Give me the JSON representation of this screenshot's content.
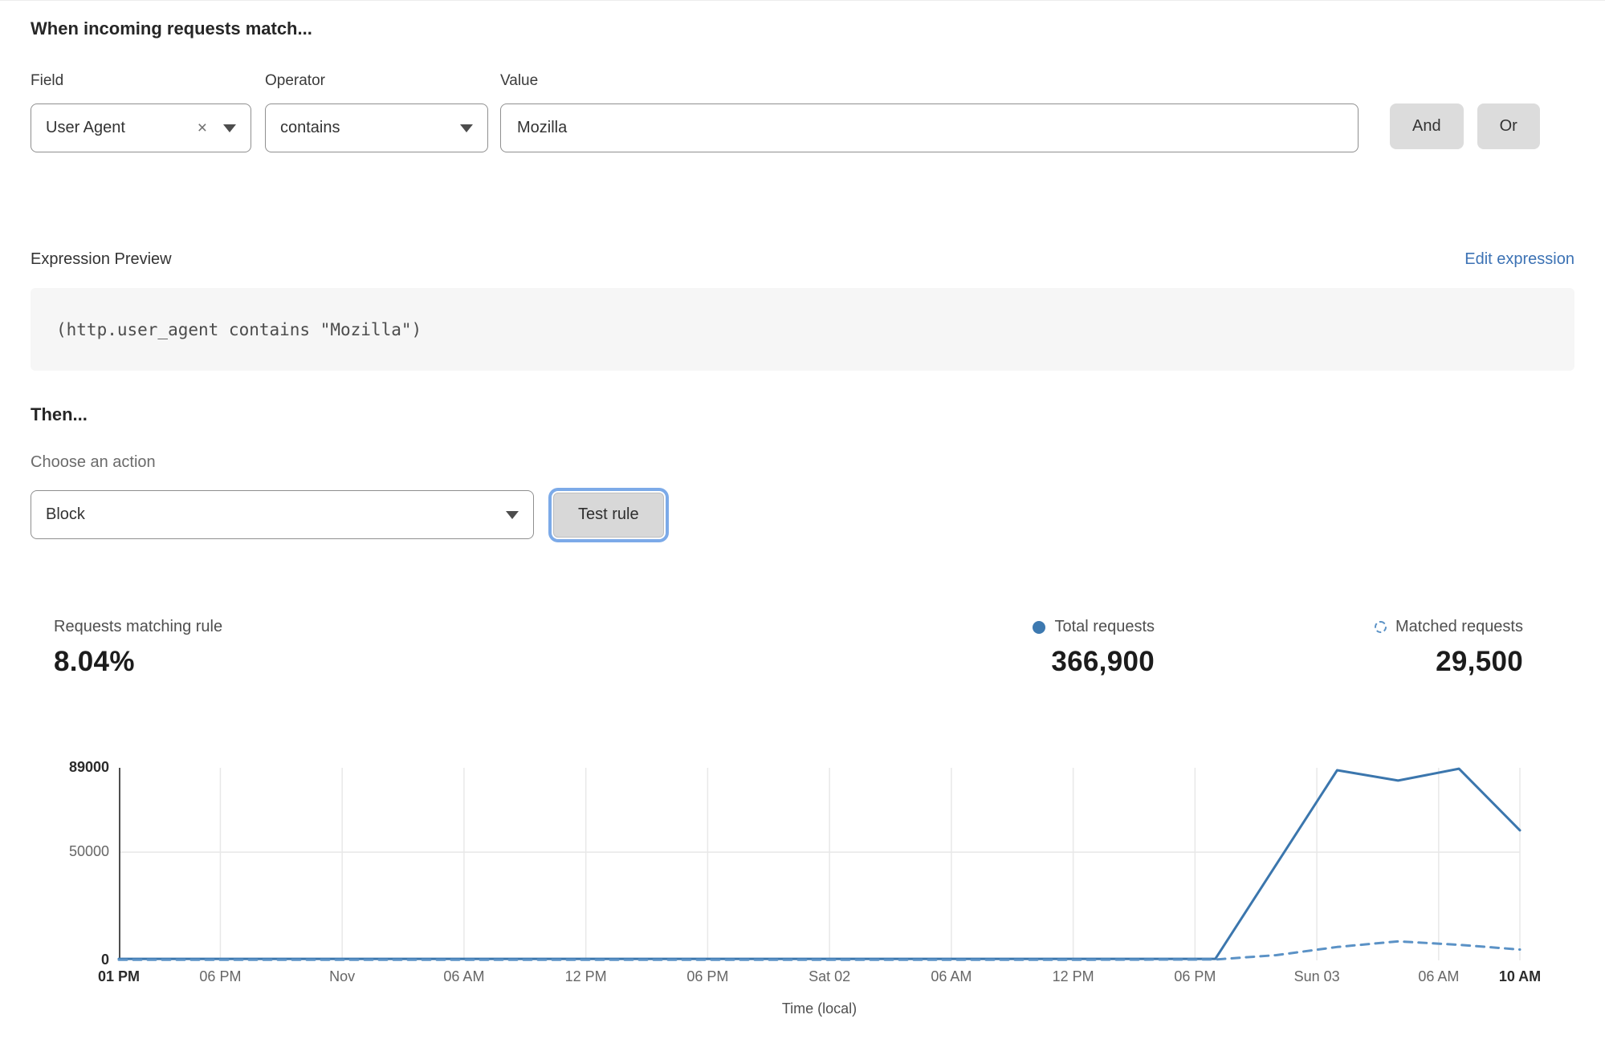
{
  "match": {
    "heading": "When incoming requests match..."
  },
  "builder": {
    "field_label": "Field",
    "operator_label": "Operator",
    "value_label": "Value",
    "field_value": "User Agent",
    "operator_value": "contains",
    "value_value": "Mozilla",
    "clear_icon": "×",
    "and_label": "And",
    "or_label": "Or"
  },
  "expression": {
    "label": "Expression Preview",
    "edit_link": "Edit expression",
    "code": "(http.user_agent contains \"Mozilla\")"
  },
  "action": {
    "heading": "Then...",
    "choose_label": "Choose an action",
    "selected": "Block",
    "test_button": "Test rule"
  },
  "stats": {
    "matching": {
      "label": "Requests matching rule",
      "value": "8.04%"
    },
    "total": {
      "label": "Total requests",
      "value": "366,900"
    },
    "matched": {
      "label": "Matched requests",
      "value": "29,500"
    }
  },
  "colors": {
    "accent_link": "#3c72b4",
    "line_total": "#3b76ad",
    "line_matched": "#5b92c6",
    "grid": "#e8e8e8",
    "axis": "#4f4f4f"
  },
  "chart_data": {
    "type": "line",
    "title": "",
    "xlabel": "Time (local)",
    "ylabel": "",
    "ylim": [
      0,
      89000
    ],
    "grid": true,
    "legend_position": "top-right",
    "x_hours_total": 69,
    "yticks": [
      {
        "v": 89000,
        "label": "89000",
        "bold": true
      },
      {
        "v": 50000,
        "label": "50000",
        "bold": false
      },
      {
        "v": 0,
        "label": "0",
        "bold": true
      }
    ],
    "xticks": [
      {
        "h": 0,
        "label": "01 PM",
        "bold": true
      },
      {
        "h": 5,
        "label": "06 PM",
        "bold": false
      },
      {
        "h": 11,
        "label": "Nov",
        "bold": false
      },
      {
        "h": 17,
        "label": "06 AM",
        "bold": false
      },
      {
        "h": 23,
        "label": "12 PM",
        "bold": false
      },
      {
        "h": 29,
        "label": "06 PM",
        "bold": false
      },
      {
        "h": 35,
        "label": "Sat 02",
        "bold": false
      },
      {
        "h": 41,
        "label": "06 AM",
        "bold": false
      },
      {
        "h": 47,
        "label": "12 PM",
        "bold": false
      },
      {
        "h": 53,
        "label": "06 PM",
        "bold": false
      },
      {
        "h": 59,
        "label": "Sun 03",
        "bold": false
      },
      {
        "h": 65,
        "label": "06 AM",
        "bold": false
      },
      {
        "h": 69,
        "label": "10 AM",
        "bold": true
      }
    ],
    "series": [
      {
        "name": "Total requests",
        "style": "solid",
        "color": "#3b76ad",
        "points": [
          [
            0,
            700
          ],
          [
            6,
            700
          ],
          [
            12,
            700
          ],
          [
            18,
            700
          ],
          [
            24,
            700
          ],
          [
            30,
            700
          ],
          [
            36,
            700
          ],
          [
            42,
            700
          ],
          [
            48,
            700
          ],
          [
            54,
            700
          ],
          [
            60,
            87900
          ],
          [
            63,
            83100
          ],
          [
            66,
            88600
          ],
          [
            69,
            60100
          ]
        ]
      },
      {
        "name": "Matched requests",
        "style": "dashed",
        "color": "#5b92c6",
        "points": [
          [
            0,
            300
          ],
          [
            6,
            300
          ],
          [
            12,
            300
          ],
          [
            18,
            300
          ],
          [
            24,
            300
          ],
          [
            30,
            300
          ],
          [
            36,
            300
          ],
          [
            42,
            300
          ],
          [
            48,
            300
          ],
          [
            54,
            400
          ],
          [
            57,
            2400
          ],
          [
            60,
            6200
          ],
          [
            63,
            8800
          ],
          [
            66,
            7200
          ],
          [
            69,
            5000
          ]
        ]
      }
    ]
  }
}
